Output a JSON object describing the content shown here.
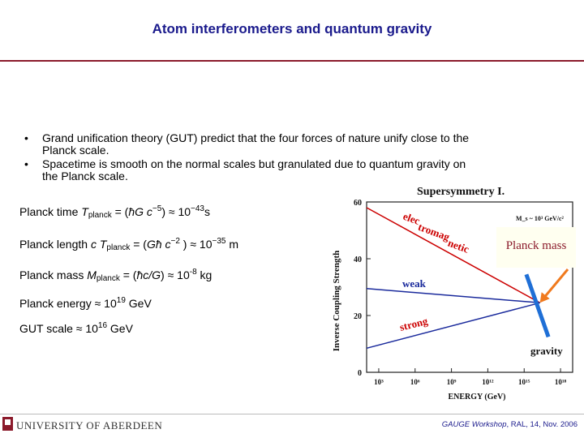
{
  "title": "Atom interferometers and quantum gravity",
  "bullets": [
    "Grand unification theory (GUT) predict that the four forces of nature unify close to the Planck scale.",
    "Spacetime is smooth on the normal scales but granulated due to quantum gravity on the Planck scale."
  ],
  "bullet_glyph": "•",
  "formulas": {
    "planck_time": {
      "label": "Planck time",
      "symbol": "T",
      "sub": "planck",
      "eq": " = (",
      "hbar": "ħ",
      "g": "G",
      "c": " c",
      "exp1": "−5",
      "close": ") ≈ 10",
      "exp2": "−43",
      "unit": "s"
    },
    "planck_length": {
      "label": "Planck length",
      "c": "c",
      "symbol": "T",
      "sub": "planck",
      "eq": " = (",
      "g": "G",
      "hbar": "ħ",
      "c2": " c",
      "exp1": "−2",
      "close": " ) ≈ 10",
      "exp2": "−35",
      "unit": " m"
    },
    "planck_mass": {
      "label": "Planck mass",
      "symbol": "M",
      "sub": "planck",
      "eq": " = (",
      "hbar": "ħ",
      "cg": "c/G",
      "close": ") ≈  10",
      "exp": "-8",
      "unit": " kg"
    },
    "planck_energy": {
      "label": "Planck energy ≈ 10",
      "exp": "19",
      "unit": " GeV"
    },
    "gut_scale": {
      "label": "GUT scale ≈ 10",
      "exp": "16",
      "unit": " GeV"
    }
  },
  "chart_data": {
    "type": "line",
    "title": "Supersymmetry I.",
    "xlabel": "ENERGY (GeV)",
    "ylabel": "Inverse Coupling Strength",
    "x_scale": "log",
    "xlim": [
      100,
      1e+19
    ],
    "ylim": [
      0,
      60
    ],
    "x_ticks": [
      "10³",
      "10⁶",
      "10⁹",
      "10¹²",
      "10¹⁵",
      "10¹⁸"
    ],
    "x_tick_values": [
      1000,
      1000000,
      1000000000,
      1000000000000.0,
      1000000000000000.0,
      1e+18
    ],
    "y_ticks": [
      "0",
      "20",
      "40",
      "60"
    ],
    "y_tick_values": [
      0,
      20,
      40,
      60
    ],
    "annotation": "M_s ~ 10³ GeV/c²",
    "series": [
      {
        "name": "electromagnetic",
        "color": "#cc0000",
        "x": [
          100,
          2e+16
        ],
        "y": [
          58,
          24.5
        ]
      },
      {
        "name": "weak",
        "color": "#1a2a9c",
        "x": [
          100,
          2e+16
        ],
        "y": [
          29.5,
          24.5
        ]
      },
      {
        "name": "strong",
        "color": "#1a2a9c",
        "x": [
          100,
          2e+16
        ],
        "y": [
          8.5,
          24.5
        ]
      },
      {
        "name": "gravity",
        "color": "#1f6fd6",
        "x": [
          1500000000000000.0,
          1e+17
        ],
        "y": [
          34.5,
          12.5
        ]
      }
    ],
    "planck_arrow": {
      "label": "Planck mass",
      "color": "#f07a1e"
    }
  },
  "colors": {
    "title": "#1a1a8c",
    "rule": "#8b1a2b",
    "footer_text": "#1a1a8c"
  },
  "footer": {
    "university": "UNIVERSITY OF ABERDEEN",
    "workshop": "GAUGE Workshop",
    "details": ", RAL, 14, Nov. 2006"
  }
}
